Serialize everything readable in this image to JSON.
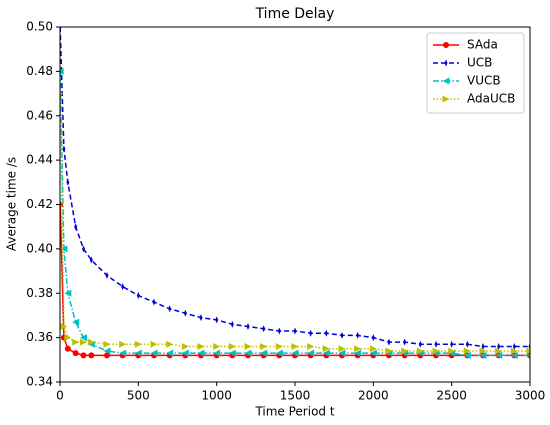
{
  "chart_data": {
    "type": "line",
    "title": "Time Delay",
    "x_label": "Time Period t",
    "y_label": "Average time /s",
    "x": [
      1,
      25,
      50,
      100,
      150,
      200,
      300,
      400,
      500,
      600,
      700,
      800,
      900,
      1000,
      1100,
      1200,
      1300,
      1400,
      1500,
      1600,
      1700,
      1800,
      1900,
      2000,
      2100,
      2200,
      2300,
      2400,
      2500,
      2600,
      2700,
      2800,
      2900,
      3000
    ],
    "series": [
      {
        "name": "SAda",
        "color": "#ff0000",
        "linestyle": "solid",
        "marker": "circle",
        "values": [
          0.42,
          0.36,
          0.355,
          0.353,
          0.352,
          0.352,
          0.352,
          0.352,
          0.352,
          0.352,
          0.352,
          0.352,
          0.352,
          0.352,
          0.352,
          0.352,
          0.352,
          0.352,
          0.352,
          0.352,
          0.352,
          0.352,
          0.352,
          0.352,
          0.352,
          0.352,
          0.352,
          0.352,
          0.352,
          0.352,
          0.352,
          0.352,
          0.352,
          0.352
        ]
      },
      {
        "name": "UCB",
        "color": "#0000dd",
        "linestyle": "dashed",
        "marker": "diamond",
        "values": [
          0.5,
          0.445,
          0.43,
          0.41,
          0.4,
          0.395,
          0.388,
          0.383,
          0.379,
          0.376,
          0.373,
          0.371,
          0.369,
          0.368,
          0.366,
          0.365,
          0.364,
          0.363,
          0.363,
          0.362,
          0.362,
          0.361,
          0.361,
          0.36,
          0.358,
          0.358,
          0.357,
          0.357,
          0.357,
          0.357,
          0.356,
          0.356,
          0.356,
          0.356
        ]
      },
      {
        "name": "VUCB",
        "color": "#00c0c0",
        "linestyle": "dashdot",
        "marker": "triangle-left",
        "values": [
          0.48,
          0.4,
          0.38,
          0.367,
          0.36,
          0.357,
          0.354,
          0.353,
          0.353,
          0.353,
          0.353,
          0.353,
          0.353,
          0.353,
          0.353,
          0.353,
          0.353,
          0.353,
          0.353,
          0.353,
          0.353,
          0.353,
          0.353,
          0.353,
          0.353,
          0.353,
          0.353,
          0.353,
          0.353,
          0.352,
          0.352,
          0.352,
          0.352,
          0.352
        ]
      },
      {
        "name": "AdaUCB",
        "color": "#bfbf00",
        "linestyle": "dotted",
        "marker": "triangle-right",
        "values": [
          0.47,
          0.365,
          0.36,
          0.358,
          0.358,
          0.358,
          0.357,
          0.357,
          0.357,
          0.357,
          0.357,
          0.356,
          0.356,
          0.356,
          0.356,
          0.356,
          0.356,
          0.356,
          0.356,
          0.356,
          0.355,
          0.355,
          0.355,
          0.355,
          0.354,
          0.354,
          0.354,
          0.354,
          0.354,
          0.354,
          0.354,
          0.354,
          0.354,
          0.354
        ]
      }
    ],
    "xlim": [
      0,
      3000
    ],
    "ylim": [
      0.34,
      0.5
    ],
    "xticks": [
      0,
      500,
      1000,
      1500,
      2000,
      2500,
      3000
    ],
    "yticks": [
      0.34,
      0.36,
      0.38,
      {
        "value": 0.4,
        "label": "0.40"
      },
      0.42,
      0.44,
      0.46,
      0.48,
      {
        "value": 0.5,
        "label": "0.50"
      }
    ],
    "legend": "upper right"
  }
}
